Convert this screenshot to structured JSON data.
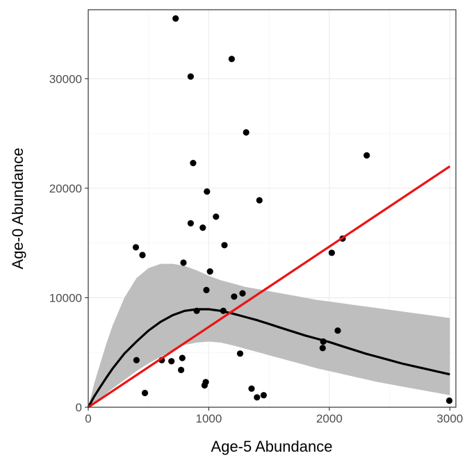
{
  "chart_data": {
    "type": "scatter",
    "xlabel": "Age-5 Abundance",
    "ylabel": "Age-0 Abundance",
    "xlim": [
      0,
      3050
    ],
    "ylim": [
      0,
      36300
    ],
    "x_ticks": [
      0,
      1000,
      2000,
      3000
    ],
    "y_ticks": [
      0,
      10000,
      20000,
      30000
    ],
    "x_tick_labels": [
      "0",
      "1000",
      "2000",
      "3000"
    ],
    "y_tick_labels": [
      "0",
      "10000",
      "20000",
      "30000"
    ],
    "grid": true,
    "colors": {
      "points": "#000000",
      "fit": "#000000",
      "ribbon": "#bebebe",
      "line": "#ee1111"
    },
    "points": [
      [
        725,
        35500
      ],
      [
        1190,
        31800
      ],
      [
        850,
        30200
      ],
      [
        1310,
        25100
      ],
      [
        870,
        22300
      ],
      [
        2310,
        23000
      ],
      [
        1420,
        18900
      ],
      [
        985,
        19700
      ],
      [
        1060,
        17400
      ],
      [
        850,
        16800
      ],
      [
        950,
        16400
      ],
      [
        1130,
        14800
      ],
      [
        395,
        14600
      ],
      [
        450,
        13900
      ],
      [
        2110,
        15400
      ],
      [
        2020,
        14100
      ],
      [
        790,
        13200
      ],
      [
        1010,
        12400
      ],
      [
        980,
        10700
      ],
      [
        1280,
        10400
      ],
      [
        1210,
        10100
      ],
      [
        1120,
        8800
      ],
      [
        900,
        8800
      ],
      [
        2070,
        7000
      ],
      [
        1950,
        6000
      ],
      [
        1945,
        5400
      ],
      [
        1260,
        4900
      ],
      [
        400,
        4300
      ],
      [
        610,
        4300
      ],
      [
        690,
        4200
      ],
      [
        780,
        4500
      ],
      [
        770,
        3400
      ],
      [
        965,
        2000
      ],
      [
        975,
        2300
      ],
      [
        1355,
        1700
      ],
      [
        1455,
        1100
      ],
      [
        1400,
        900
      ],
      [
        470,
        1300
      ],
      [
        2995,
        600
      ]
    ],
    "fit_curve": {
      "x": [
        0,
        50,
        100,
        150,
        200,
        300,
        400,
        500,
        600,
        700,
        800,
        900,
        1000,
        1100,
        1200,
        1300,
        1400,
        1500,
        1600,
        1700,
        1800,
        1900,
        2000,
        2100,
        2200,
        2300,
        2400,
        2500,
        2600,
        2700,
        2800,
        2900,
        3000
      ],
      "y": [
        0,
        1000,
        1850,
        2700,
        3500,
        4900,
        6000,
        7000,
        7800,
        8400,
        8800,
        8950,
        8950,
        8800,
        8550,
        8250,
        7950,
        7600,
        7250,
        6900,
        6550,
        6250,
        5950,
        5600,
        5250,
        4900,
        4600,
        4300,
        4000,
        3750,
        3500,
        3250,
        3000
      ]
    },
    "ribbon": {
      "x": [
        0,
        50,
        100,
        150,
        200,
        300,
        400,
        500,
        600,
        700,
        800,
        900,
        1000,
        1100,
        1200,
        1300,
        1400,
        1500,
        1600,
        1700,
        1800,
        1900,
        2000,
        2100,
        2200,
        2300,
        2400,
        2500,
        2600,
        2700,
        2800,
        2900,
        3000
      ],
      "upper": [
        0,
        2200,
        4000,
        5800,
        7400,
        10000,
        11800,
        12700,
        13100,
        13100,
        12900,
        12500,
        12000,
        11600,
        11300,
        11000,
        10800,
        10600,
        10400,
        10200,
        10000,
        9800,
        9650,
        9500,
        9350,
        9200,
        9050,
        8900,
        8750,
        8600,
        8450,
        8300,
        8150
      ],
      "lower": [
        0,
        300,
        800,
        1250,
        1700,
        2500,
        3300,
        4000,
        4600,
        5200,
        5700,
        5900,
        6000,
        5900,
        5650,
        5350,
        5050,
        4750,
        4450,
        4150,
        3850,
        3550,
        3300,
        3050,
        2800,
        2550,
        2300,
        2100,
        1900,
        1700,
        1500,
        1300,
        1100
      ]
    },
    "line": {
      "x": [
        0,
        3000
      ],
      "y": [
        0,
        22000
      ]
    }
  }
}
